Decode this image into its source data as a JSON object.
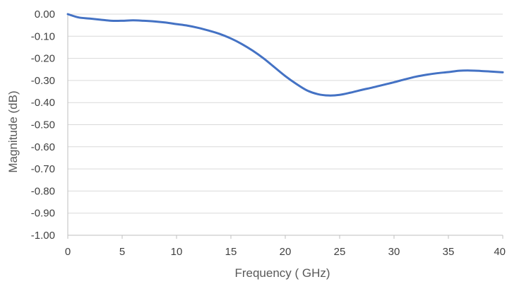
{
  "chart_data": {
    "type": "line",
    "title": "",
    "xlabel": "Frequency ( GHz)",
    "ylabel": "Magnitude (dB)",
    "xlim": [
      0,
      40
    ],
    "ylim": [
      -1.0,
      0.0
    ],
    "x_ticks": [
      0,
      5,
      10,
      15,
      20,
      25,
      30,
      35,
      40
    ],
    "x_tick_labels": [
      "0",
      "5",
      "10",
      "15",
      "20",
      "25",
      "30",
      "35",
      "40"
    ],
    "y_ticks": [
      0.0,
      -0.1,
      -0.2,
      -0.3,
      -0.4,
      -0.5,
      -0.6,
      -0.7,
      -0.8,
      -0.9,
      -1.0
    ],
    "y_tick_labels": [
      "0.00",
      "-0.10",
      "-0.20",
      "-0.30",
      "-0.40",
      "-0.50",
      "-0.60",
      "-0.70",
      "-0.80",
      "-0.90",
      "-1.00"
    ],
    "grid": "horizontal",
    "legend": "none",
    "series": [
      {
        "color": "#4472C4",
        "x": [
          0,
          1,
          2,
          3,
          4,
          5,
          6,
          7,
          8,
          9,
          10,
          11,
          12,
          13,
          14,
          15,
          16,
          17,
          18,
          19,
          20,
          21,
          22,
          23,
          24,
          25,
          26,
          27,
          28,
          29,
          30,
          31,
          32,
          33,
          34,
          35,
          36,
          37,
          38,
          39,
          40
        ],
        "y": [
          0.0,
          -0.015,
          -0.02,
          -0.025,
          -0.03,
          -0.03,
          -0.028,
          -0.03,
          -0.033,
          -0.038,
          -0.045,
          -0.052,
          -0.062,
          -0.075,
          -0.09,
          -0.11,
          -0.135,
          -0.165,
          -0.2,
          -0.24,
          -0.28,
          -0.315,
          -0.345,
          -0.362,
          -0.368,
          -0.365,
          -0.355,
          -0.343,
          -0.332,
          -0.32,
          -0.308,
          -0.295,
          -0.283,
          -0.274,
          -0.267,
          -0.262,
          -0.256,
          -0.255,
          -0.257,
          -0.26,
          -0.263
        ]
      }
    ]
  }
}
